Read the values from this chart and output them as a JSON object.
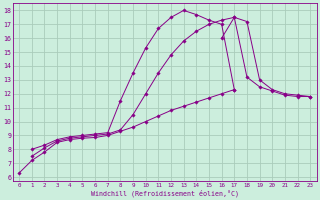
{
  "xlabel": "Windchill (Refroidissement éolien,°C)",
  "bg_color": "#cceedd",
  "grid_color": "#aaccbb",
  "line_color": "#880088",
  "xlim": [
    -0.5,
    23.5
  ],
  "ylim": [
    5.7,
    18.5
  ],
  "xticks": [
    0,
    1,
    2,
    3,
    4,
    5,
    6,
    7,
    8,
    9,
    10,
    11,
    12,
    13,
    14,
    15,
    16,
    17,
    18,
    19,
    20,
    21,
    22,
    23
  ],
  "yticks": [
    6,
    7,
    8,
    9,
    10,
    11,
    12,
    13,
    14,
    15,
    16,
    17,
    18
  ],
  "lines": [
    {
      "x": [
        0,
        1,
        2,
        3,
        4,
        5,
        6,
        7,
        8,
        9,
        10,
        11,
        12,
        13,
        14,
        15,
        16,
        17
      ],
      "y": [
        6.3,
        7.2,
        7.8,
        8.5,
        8.7,
        8.8,
        8.85,
        9.0,
        9.3,
        9.6,
        10.0,
        10.4,
        10.8,
        11.1,
        11.4,
        11.7,
        12.0,
        12.3
      ]
    },
    {
      "x": [
        1,
        2,
        3,
        4,
        5,
        6,
        7,
        8,
        9,
        10,
        11,
        12,
        13,
        14,
        15,
        16,
        17,
        18,
        19,
        20,
        21,
        22,
        23
      ],
      "y": [
        7.5,
        8.1,
        8.6,
        8.8,
        8.9,
        9.0,
        9.1,
        9.4,
        10.5,
        12.0,
        13.5,
        14.8,
        15.8,
        16.5,
        17.0,
        17.3,
        17.5,
        13.2,
        12.5,
        12.2,
        11.9,
        11.8,
        11.8
      ]
    },
    {
      "x": [
        1,
        2,
        3,
        4,
        5,
        6,
        7,
        8,
        9,
        10,
        11,
        12,
        13,
        14,
        15,
        16,
        17
      ],
      "y": [
        8.0,
        8.3,
        8.7,
        8.9,
        9.0,
        9.1,
        9.2,
        11.5,
        13.5,
        15.3,
        16.7,
        17.5,
        18.0,
        17.7,
        17.3,
        17.0,
        12.3
      ]
    },
    {
      "x": [
        16,
        17,
        18,
        19,
        20,
        21,
        22,
        23
      ],
      "y": [
        16.0,
        17.5,
        17.2,
        13.0,
        12.3,
        12.0,
        11.9,
        11.8
      ]
    }
  ]
}
